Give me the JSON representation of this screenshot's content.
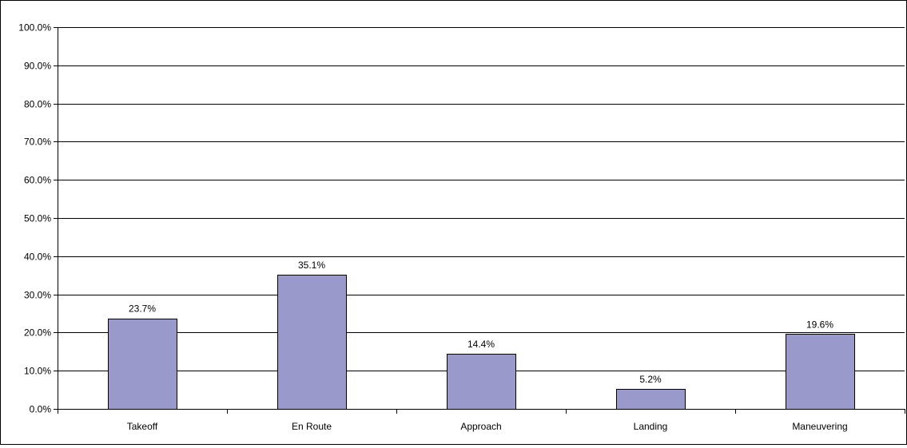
{
  "chart_data": {
    "type": "bar",
    "title": "",
    "xlabel": "",
    "ylabel": "",
    "categories": [
      "Takeoff",
      "En Route",
      "Approach",
      "Landing",
      "Maneuvering"
    ],
    "values": [
      23.7,
      35.1,
      14.4,
      5.2,
      19.6
    ],
    "value_labels": [
      "23.7%",
      "35.1%",
      "14.4%",
      "5.2%",
      "19.6%"
    ],
    "ylim": [
      0,
      100
    ],
    "y_ticks": [
      0,
      10,
      20,
      30,
      40,
      50,
      60,
      70,
      80,
      90,
      100
    ],
    "y_tick_labels": [
      "0.0%",
      "10.0%",
      "20.0%",
      "30.0%",
      "40.0%",
      "50.0%",
      "60.0%",
      "70.0%",
      "80.0%",
      "90.0%",
      "100.0%"
    ],
    "grid": true,
    "legend": "none",
    "colors": {
      "bar_fill": "#9999cc",
      "bar_stroke": "#000000",
      "grid": "#000000",
      "axis": "#000000"
    }
  }
}
